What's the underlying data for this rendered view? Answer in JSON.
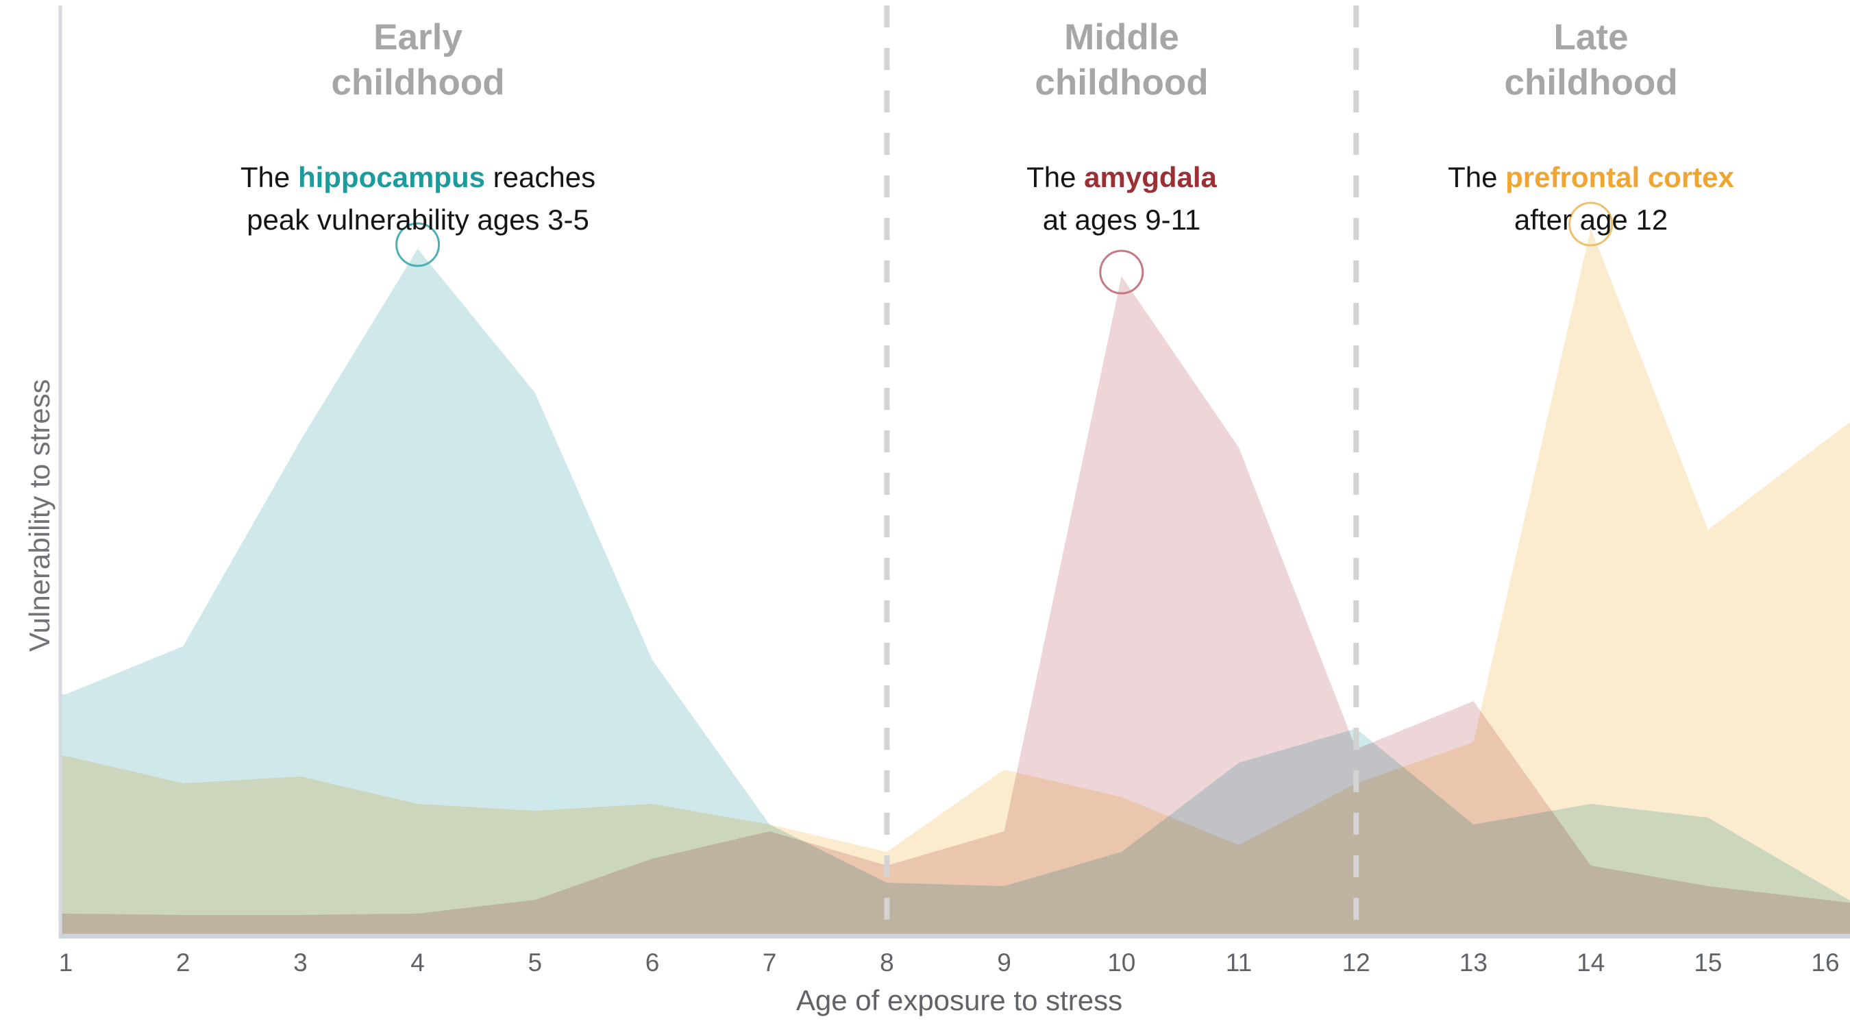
{
  "chart_data": {
    "type": "area",
    "title": "",
    "xlabel": "Age of exposure to stress",
    "ylabel": "Vulnerability to stress",
    "x": [
      1,
      2,
      3,
      4,
      5,
      6,
      7,
      8,
      9,
      10,
      11,
      12,
      13,
      14,
      15,
      16
    ],
    "x_ticks": [
      "1",
      "2",
      "3",
      "4",
      "5",
      "6",
      "7",
      "8",
      "9",
      "10",
      "11",
      "12",
      "13",
      "14",
      "15",
      "16"
    ],
    "ylim": [
      0,
      1.35
    ],
    "grid": "off",
    "legend": "none",
    "dividers_at_ages": [
      8,
      12
    ],
    "divider_color": "#d3d3d3",
    "axis_line_color": "#ccd3db",
    "series": [
      {
        "id": "hippocampus",
        "name": "hippocampus",
        "fill": "#cfe8e9",
        "accent": "#1a9b9e",
        "circle_stroke": "#4fb0b3",
        "peak_age": 4,
        "peak_value": 1.0,
        "values": [
          0.35,
          0.42,
          0.72,
          1.0,
          0.79,
          0.4,
          0.16,
          0.075,
          0.07,
          0.12,
          0.25,
          0.3,
          0.16,
          0.19,
          0.17,
          0.07
        ]
      },
      {
        "id": "amygdala",
        "name": "amygdala",
        "fill": "#eed6d8",
        "accent": "#9c2f33",
        "circle_stroke": "#c47a80",
        "peak_age": 10,
        "peak_value": 0.96,
        "values": [
          0.03,
          0.028,
          0.028,
          0.03,
          0.05,
          0.11,
          0.15,
          0.1,
          0.15,
          0.96,
          0.71,
          0.27,
          0.34,
          0.1,
          0.07,
          0.05
        ]
      },
      {
        "id": "prefrontal-cortex",
        "name": "prefrontal cortex",
        "fill": "#fbeccf",
        "accent": "#f0a431",
        "circle_stroke": "#edc06d",
        "peak_age": 14,
        "peak_value": 1.03,
        "values": [
          0.26,
          0.22,
          0.23,
          0.19,
          0.18,
          0.19,
          0.16,
          0.12,
          0.24,
          0.2,
          0.13,
          0.22,
          0.28,
          1.03,
          0.59,
          0.72
        ]
      }
    ]
  },
  "sections": [
    {
      "title": [
        "Early",
        "childhood"
      ],
      "ann_pre": "The ",
      "ann_key": "hippocampus",
      "ann_post": " reaches",
      "ann_line2": "peak vulnerability ages 3-5",
      "center_age": 4
    },
    {
      "title": [
        "Middle",
        "childhood"
      ],
      "ann_pre": "The ",
      "ann_key": "amygdala",
      "ann_post": "",
      "ann_line2": "at ages 9-11",
      "center_age": 10
    },
    {
      "title": [
        "Late",
        "childhood"
      ],
      "ann_pre": "The ",
      "ann_key": "prefrontal cortex",
      "ann_post": "",
      "ann_line2": "after age 12",
      "center_age": 14
    }
  ]
}
